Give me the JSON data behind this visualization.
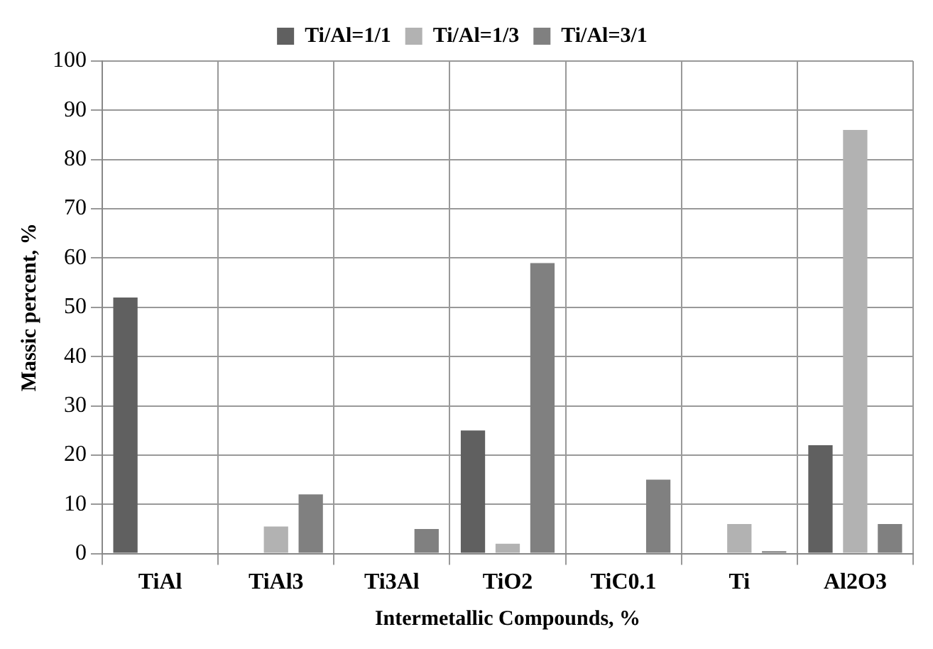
{
  "chart_data": {
    "type": "bar",
    "xlabel": "Intermetallic Compounds, %",
    "ylabel": "Massic percent, %",
    "categories": [
      "TiAl",
      "TiAl3",
      "Ti3Al",
      "TiO2",
      "TiC0.1",
      "Ti",
      "Al2O3"
    ],
    "series": [
      {
        "name": "Ti/Al=1/1",
        "color": "#606060",
        "values": [
          52,
          0,
          0,
          25,
          0,
          0,
          22
        ]
      },
      {
        "name": "Ti/Al=1/3",
        "color": "#b2b2b2",
        "values": [
          0,
          5.5,
          0,
          2,
          0,
          6,
          86
        ]
      },
      {
        "name": "Ti/Al=3/1",
        "color": "#808080",
        "values": [
          0,
          12,
          5,
          59,
          15,
          0.5,
          6
        ]
      }
    ],
    "ylim": [
      0,
      100
    ],
    "yticks": [
      0,
      10,
      20,
      30,
      40,
      50,
      60,
      70,
      80,
      90,
      100
    ],
    "grid": true,
    "legend": "top"
  }
}
